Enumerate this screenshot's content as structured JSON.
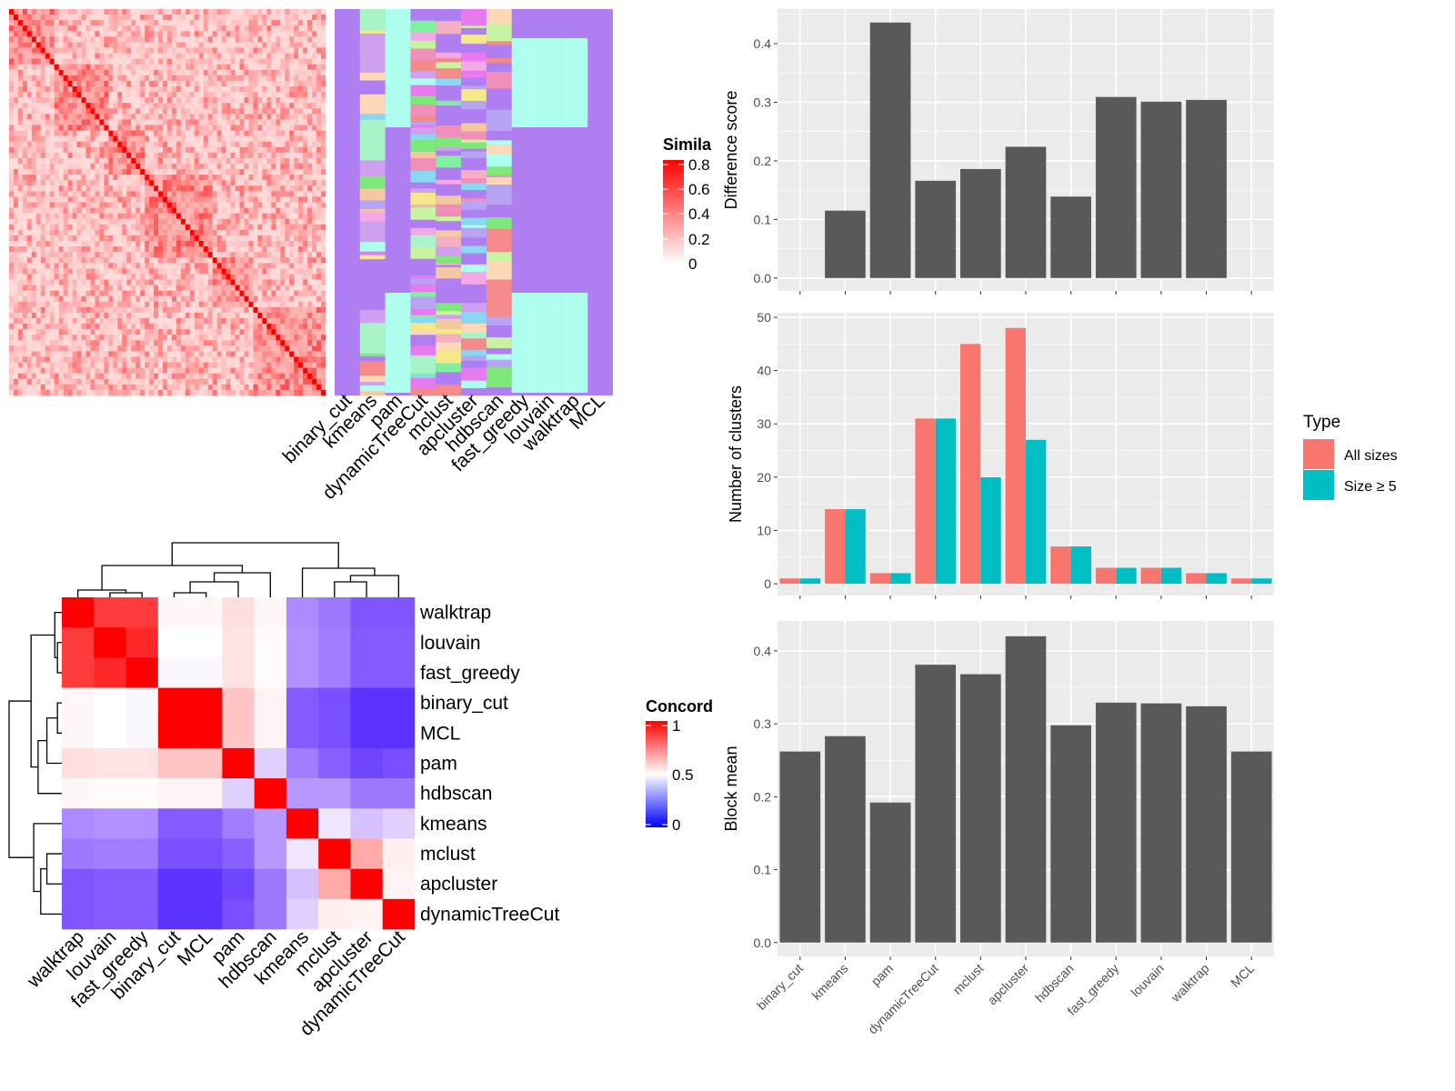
{
  "similarity_heatmap": {
    "legend_title": "Simila",
    "legend_ticks": [
      "0.8",
      "0.6",
      "0.4",
      "0.2",
      "0"
    ],
    "colors": {
      "high": "#FF0000",
      "low": "#FFFFFF"
    }
  },
  "cluster_labels": {
    "methods": [
      "binary_cut",
      "kmeans",
      "pam",
      "dynamicTreeCut",
      "mclust",
      "apcluster",
      "hdbscan",
      "fast_greedy",
      "louvain",
      "walktrap",
      "MCL"
    ],
    "background": "#AF7FF2"
  },
  "concordance": {
    "legend_title": "Concord",
    "legend_ticks": [
      "1",
      "0.5",
      "0"
    ],
    "order": [
      "walktrap",
      "louvain",
      "fast_greedy",
      "binary_cut",
      "MCL",
      "pam",
      "hdbscan",
      "kmeans",
      "mclust",
      "apcluster",
      "dynamicTreeCut"
    ],
    "matrix": [
      [
        1.0,
        0.92,
        0.92,
        0.52,
        0.52,
        0.58,
        0.52,
        0.34,
        0.31,
        0.25,
        0.25
      ],
      [
        0.92,
        1.0,
        0.95,
        0.5,
        0.5,
        0.57,
        0.51,
        0.35,
        0.32,
        0.26,
        0.26
      ],
      [
        0.92,
        0.95,
        1.0,
        0.49,
        0.49,
        0.57,
        0.51,
        0.35,
        0.32,
        0.26,
        0.26
      ],
      [
        0.52,
        0.5,
        0.49,
        1.0,
        1.0,
        0.64,
        0.53,
        0.26,
        0.24,
        0.18,
        0.18
      ],
      [
        0.52,
        0.5,
        0.49,
        1.0,
        1.0,
        0.64,
        0.53,
        0.26,
        0.24,
        0.18,
        0.18
      ],
      [
        0.58,
        0.57,
        0.57,
        0.64,
        0.64,
        1.0,
        0.44,
        0.32,
        0.27,
        0.22,
        0.24
      ],
      [
        0.52,
        0.51,
        0.51,
        0.53,
        0.53,
        0.44,
        1.0,
        0.36,
        0.36,
        0.31,
        0.31
      ],
      [
        0.34,
        0.35,
        0.35,
        0.26,
        0.26,
        0.32,
        0.36,
        1.0,
        0.47,
        0.42,
        0.44
      ],
      [
        0.31,
        0.32,
        0.32,
        0.24,
        0.24,
        0.27,
        0.36,
        0.47,
        1.0,
        0.7,
        0.54
      ],
      [
        0.25,
        0.26,
        0.26,
        0.18,
        0.18,
        0.22,
        0.31,
        0.42,
        0.7,
        1.0,
        0.53
      ],
      [
        0.25,
        0.26,
        0.26,
        0.18,
        0.18,
        0.24,
        0.31,
        0.44,
        0.54,
        0.53,
        1.0
      ]
    ],
    "colors": {
      "high": "#FF0000",
      "mid": "#FFFFFF",
      "low": "#0000FF"
    }
  },
  "chart_data": [
    {
      "type": "bar",
      "categories": [
        "binary_cut",
        "kmeans",
        "pam",
        "dynamicTreeCut",
        "mclust",
        "apcluster",
        "hdbscan",
        "fast_greedy",
        "louvain",
        "walktrap",
        "MCL"
      ],
      "values": [
        0,
        0.115,
        0.436,
        0.166,
        0.186,
        0.224,
        0.139,
        0.309,
        0.301,
        0.304,
        0
      ],
      "ylabel": "Difference score",
      "yticks": [
        "0.0",
        "0.1",
        "0.2",
        "0.3",
        "0.4"
      ],
      "ylim": [
        -0.022,
        0.459
      ],
      "color": "#595959",
      "grid": true
    },
    {
      "type": "bar",
      "categories": [
        "binary_cut",
        "kmeans",
        "pam",
        "dynamicTreeCut",
        "mclust",
        "apcluster",
        "hdbscan",
        "fast_greedy",
        "louvain",
        "walktrap",
        "MCL"
      ],
      "series": [
        {
          "name": "All sizes",
          "values": [
            1,
            14,
            2,
            31,
            45,
            48,
            7,
            3,
            3,
            2,
            1
          ],
          "color": "#F8766D"
        },
        {
          "name": "Size ≥ 5",
          "values": [
            1,
            14,
            2,
            31,
            20,
            27,
            7,
            3,
            3,
            2,
            1
          ],
          "color": "#00BFC4"
        }
      ],
      "ylabel": "Number of clusters",
      "yticks": [
        "0",
        "10",
        "20",
        "30",
        "40",
        "50"
      ],
      "ylim": [
        -2.2,
        50.85
      ],
      "legend": {
        "title": "Type",
        "position": "right"
      },
      "grid": true
    },
    {
      "type": "bar",
      "categories": [
        "binary_cut",
        "kmeans",
        "pam",
        "dynamicTreeCut",
        "mclust",
        "apcluster",
        "hdbscan",
        "fast_greedy",
        "louvain",
        "walktrap",
        "MCL"
      ],
      "values": [
        0.262,
        0.283,
        0.192,
        0.381,
        0.368,
        0.42,
        0.298,
        0.329,
        0.328,
        0.324,
        0.262
      ],
      "ylabel": "Block mean",
      "yticks": [
        "0.0",
        "0.1",
        "0.2",
        "0.3",
        "0.4"
      ],
      "ylim": [
        -0.019,
        0.441
      ],
      "color": "#595959",
      "grid": true
    }
  ]
}
